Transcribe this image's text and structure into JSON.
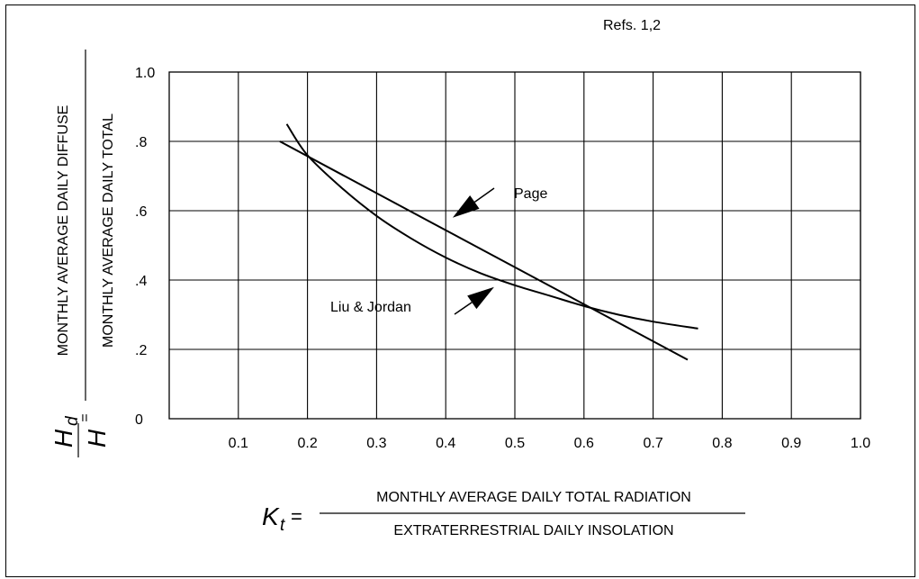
{
  "chart_data": {
    "type": "line",
    "refs": "Refs. 1,2",
    "xlim": [
      0,
      1.0
    ],
    "ylim": [
      0,
      1.0
    ],
    "grid": true,
    "x_tick_labels": [
      "0.1",
      "0.2",
      "0.3",
      "0.4",
      "0.5",
      "0.6",
      "0.7",
      "0.8",
      "0.9",
      "1.0"
    ],
    "y_tick_labels": [
      "0",
      ".2",
      ".4",
      ".6",
      ".8",
      "1.0"
    ],
    "x_ticks": [
      0.1,
      0.2,
      0.3,
      0.4,
      0.5,
      0.6,
      0.7,
      0.8,
      0.9,
      1.0
    ],
    "y_ticks": [
      0,
      0.2,
      0.4,
      0.6,
      0.8,
      1.0
    ],
    "ylabel": {
      "symbol": "H",
      "symbol_subscript": "d",
      "denominator_symbol": "H",
      "equals": "=",
      "numerator": "MONTHLY AVERAGE DAILY DIFFUSE",
      "denominator": "MONTHLY AVERAGE DAILY TOTAL"
    },
    "xlabel": {
      "symbol": "K",
      "symbol_subscript": "t",
      "equals": "=",
      "numerator": "MONTHLY AVERAGE DAILY TOTAL RADIATION",
      "denominator": "EXTRATERRESTRIAL DAILY INSOLATION"
    },
    "series": [
      {
        "name": "Page",
        "x": [
          0.16,
          0.75
        ],
        "y": [
          0.8,
          0.17
        ],
        "color": "#000000"
      },
      {
        "name": "Liu & Jordan",
        "x": [
          0.17,
          0.2,
          0.25,
          0.3,
          0.35,
          0.4,
          0.45,
          0.5,
          0.55,
          0.6,
          0.65,
          0.7,
          0.765
        ],
        "y": [
          0.85,
          0.76,
          0.665,
          0.585,
          0.52,
          0.465,
          0.42,
          0.385,
          0.355,
          0.325,
          0.3,
          0.28,
          0.26
        ],
        "color": "#000000"
      }
    ],
    "annotations": [
      {
        "text": "Page",
        "series": "Page",
        "arrow_target": [
          0.41,
          0.58
        ]
      },
      {
        "text": "Liu & Jordan",
        "series": "Liu & Jordan",
        "arrow_target": [
          0.47,
          0.38
        ]
      }
    ]
  }
}
